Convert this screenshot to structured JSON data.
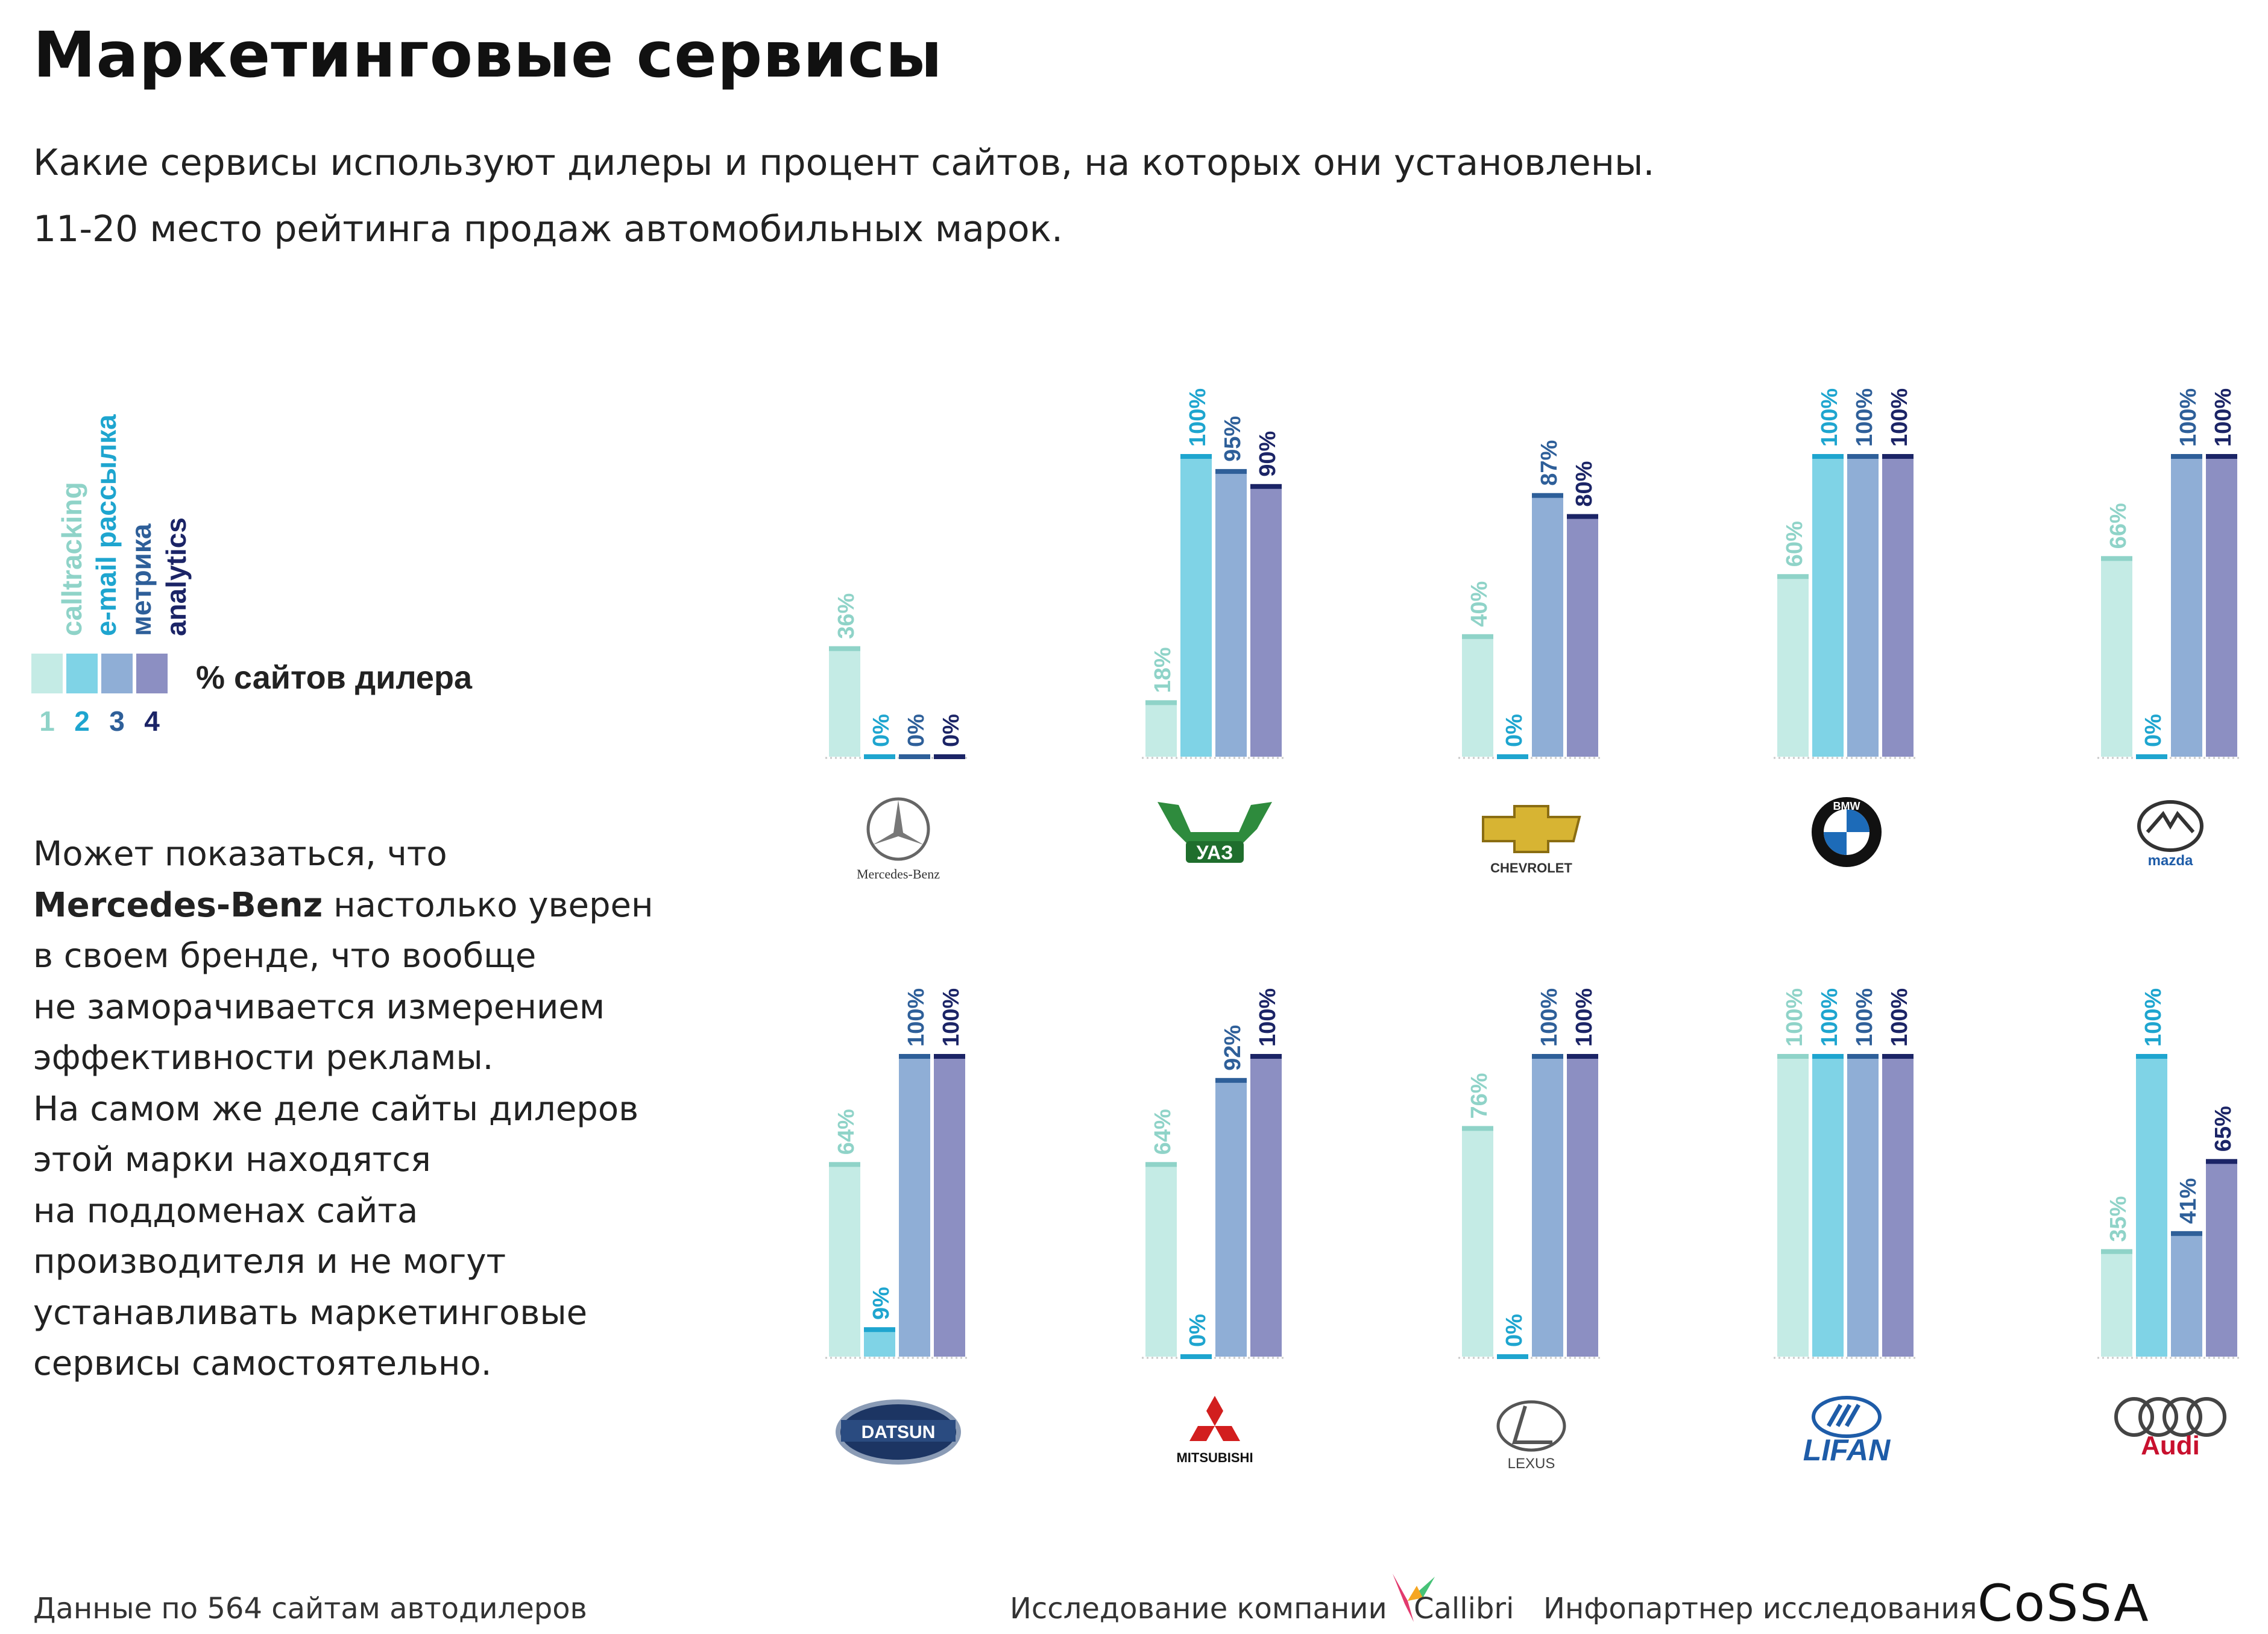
{
  "header": {
    "title": "Маркетинговые сервисы",
    "subtitle_line1": "Какие сервисы используют дилеры и процент сайтов, на которых они установлены.",
    "subtitle_line2": "11-20 место рейтинга продаж автомобильных марок."
  },
  "legend": {
    "items": [
      {
        "label": "calltracking",
        "number": "1",
        "color": "#c4ebe5",
        "text_color": "#8fd3c8"
      },
      {
        "label": "e-mail рассылка",
        "number": "2",
        "color": "#7fd3e6",
        "text_color": "#1ea5cf"
      },
      {
        "label": "метрика",
        "number": "3",
        "color": "#8faed6",
        "text_color": "#2e5f99"
      },
      {
        "label": "analytics",
        "number": "4",
        "color": "#8c8fc2",
        "text_color": "#1b2466"
      }
    ],
    "caption": "% сайтов дилера"
  },
  "note": {
    "line1": "Может показаться, что",
    "bold": "Mercedes-Benz",
    "line2_rest": " настолько уверен",
    "line3": "в своем бренде, что вообще",
    "line4": "не заморачивается измерением",
    "line5": "эффективности рекламы.",
    "line6": "На самом же деле сайты дилеров",
    "line7": "этой марки находятся",
    "line8": "на поддоменах сайта",
    "line9": "производителя и не могут",
    "line10": "устанавливать маркетинговые",
    "line11": "сервисы самостоятельно."
  },
  "chart_data": {
    "type": "bar",
    "value_suffix": "%",
    "ylim": [
      0,
      100
    ],
    "series_names": [
      "calltracking",
      "e-mail рассылка",
      "метрика",
      "analytics"
    ],
    "series_colors": [
      "#c4ebe5",
      "#7fd3e6",
      "#8faed6",
      "#8c8fc2"
    ],
    "series_cap_colors": [
      "#8fd3c8",
      "#1ea5cf",
      "#2e5f99",
      "#1b2466"
    ],
    "brands": [
      {
        "name": "Mercedes-Benz",
        "values": [
          36,
          0,
          0,
          0
        ]
      },
      {
        "name": "УАЗ",
        "values": [
          18,
          100,
          95,
          90
        ]
      },
      {
        "name": "CHEVROLET",
        "values": [
          40,
          0,
          87,
          80
        ]
      },
      {
        "name": "BMW",
        "values": [
          60,
          100,
          100,
          100
        ]
      },
      {
        "name": "mazda",
        "values": [
          66,
          0,
          100,
          100
        ]
      },
      {
        "name": "DATSUN",
        "values": [
          64,
          9,
          100,
          100
        ]
      },
      {
        "name": "MITSUBISHI",
        "values": [
          64,
          0,
          92,
          100
        ]
      },
      {
        "name": "LEXUS",
        "values": [
          76,
          0,
          100,
          100
        ]
      },
      {
        "name": "LIFAN",
        "values": [
          100,
          100,
          100,
          100
        ]
      },
      {
        "name": "Audi",
        "values": [
          35,
          100,
          41,
          65
        ]
      }
    ]
  },
  "footer": {
    "data_note": "Данные по 564 сайтам автодилеров",
    "research_label": "Исследование компании",
    "company": "Callibri",
    "partner_label": "Инфопартнер исследования",
    "partner": "CoSSA"
  }
}
